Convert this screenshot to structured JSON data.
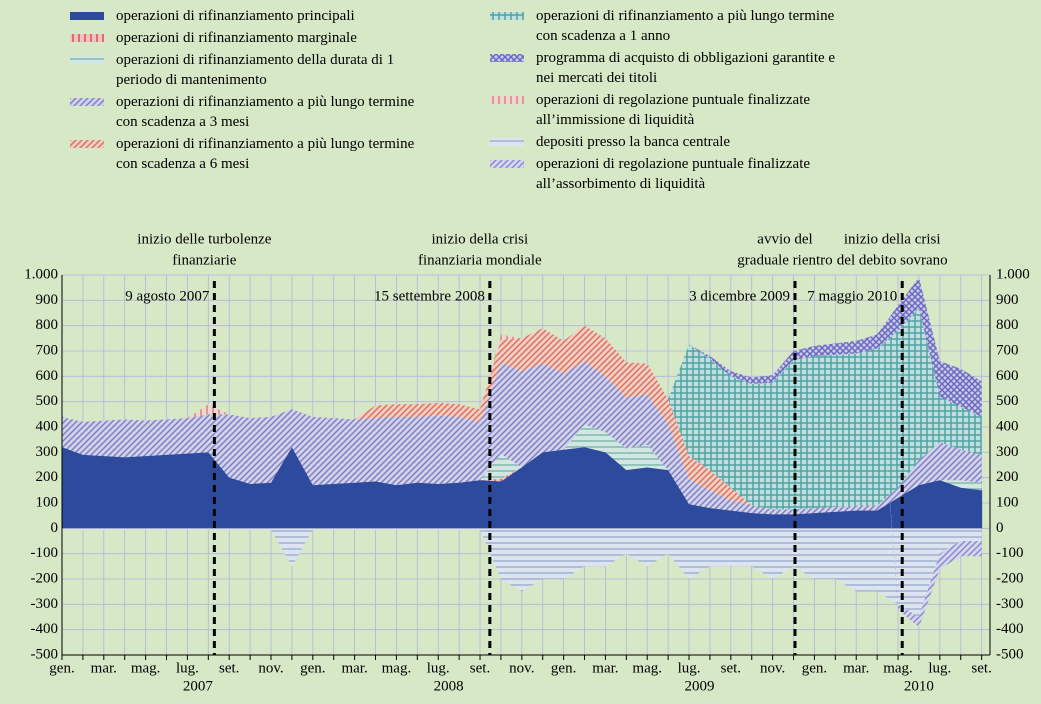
{
  "chart_data": {
    "type": "stacked_area",
    "categories": [
      "gen.",
      null,
      "mar.",
      null,
      "mag.",
      null,
      "lug.",
      null,
      "set.",
      null,
      "nov.",
      null,
      "gen.",
      null,
      "mar.",
      null,
      "mag.",
      null,
      "lug.",
      null,
      "set.",
      null,
      "nov.",
      null,
      "gen.",
      null,
      "mar.",
      null,
      "mag.",
      null,
      "lug.",
      null,
      "set.",
      null,
      "nov.",
      null,
      "gen.",
      null,
      "mar.",
      null,
      "mag.",
      null,
      "lug.",
      null,
      "set."
    ],
    "years": [
      "2007",
      "2008",
      "2009",
      "2010"
    ],
    "ylim": [
      -500,
      1000
    ],
    "yticks": [
      -500,
      -400,
      -300,
      -200,
      -100,
      0,
      100,
      200,
      300,
      400,
      500,
      600,
      700,
      800,
      900,
      {
        "value": 1000,
        "label": "1.000"
      }
    ],
    "grid": true,
    "series": [
      {
        "name": "operazioni di rifinanziamento principali",
        "color": "#2d4a9c",
        "pattern": "solid",
        "values": [
          320,
          290,
          285,
          280,
          285,
          290,
          295,
          300,
          200,
          175,
          180,
          320,
          170,
          175,
          180,
          185,
          170,
          180,
          175,
          180,
          190,
          185,
          240,
          300,
          310,
          320,
          300,
          230,
          240,
          230,
          95,
          80,
          70,
          60,
          55,
          55,
          60,
          65,
          70,
          70,
          120,
          170,
          190,
          160,
          150
        ]
      },
      {
        "name": "operazioni di rifinanziamento marginale",
        "color": "#d9534f",
        "pattern": "vstripes",
        "values": [
          0,
          0,
          0,
          0,
          0,
          0,
          0,
          0,
          0,
          0,
          0,
          0,
          0,
          0,
          0,
          0,
          0,
          0,
          0,
          0,
          0,
          10,
          0,
          0,
          0,
          0,
          0,
          0,
          0,
          0,
          0,
          0,
          0,
          0,
          0,
          0,
          0,
          0,
          0,
          0,
          0,
          0,
          0,
          0,
          0
        ]
      },
      {
        "name": "operazioni di rifinanziamento della durata di 1 periodo di mantenimento",
        "color": "#7fb8ac",
        "pattern": "hstripes",
        "values": [
          0,
          0,
          0,
          0,
          0,
          0,
          0,
          0,
          0,
          0,
          0,
          0,
          0,
          0,
          0,
          0,
          0,
          0,
          0,
          0,
          0,
          100,
          0,
          0,
          0,
          90,
          80,
          85,
          90,
          0,
          0,
          0,
          0,
          0,
          0,
          0,
          0,
          0,
          0,
          0,
          0,
          0,
          0,
          30,
          30
        ]
      },
      {
        "name": "operazioni di rifinanziamento a più lungo termine con scadenza a 3 mesi",
        "color": "#7f7fc6",
        "pattern": "diag",
        "values": [
          120,
          130,
          140,
          150,
          140,
          140,
          140,
          150,
          250,
          260,
          260,
          150,
          270,
          260,
          250,
          250,
          270,
          260,
          270,
          260,
          230,
          360,
          380,
          350,
          300,
          250,
          220,
          200,
          200,
          180,
          100,
          70,
          40,
          30,
          20,
          20,
          20,
          20,
          20,
          20,
          40,
          100,
          150,
          120,
          110
        ]
      },
      {
        "name": "operazioni di rifinanziamento a più lungo termine con scadenza a 6 mesi",
        "color": "#d9735a",
        "pattern": "diag",
        "values": [
          0,
          0,
          0,
          0,
          0,
          0,
          0,
          0,
          0,
          0,
          0,
          0,
          0,
          0,
          0,
          50,
          50,
          50,
          50,
          50,
          50,
          90,
          130,
          140,
          130,
          140,
          150,
          140,
          120,
          100,
          90,
          80,
          50,
          0,
          0,
          0,
          0,
          0,
          0,
          0,
          0,
          0,
          0,
          0,
          0
        ]
      },
      {
        "name": "operazioni di rifinanziamento a più lungo termine con scadenza a 1 anno",
        "color": "#4fa3a3",
        "pattern": "grid",
        "values": [
          0,
          0,
          0,
          0,
          0,
          0,
          0,
          0,
          0,
          0,
          0,
          0,
          0,
          0,
          0,
          0,
          0,
          0,
          0,
          0,
          0,
          0,
          0,
          0,
          0,
          0,
          0,
          0,
          0,
          0,
          440,
          440,
          440,
          480,
          500,
          590,
          600,
          600,
          600,
          620,
          620,
          600,
          180,
          170,
          150
        ]
      },
      {
        "name": "programma di acquisto di obbligazioni garantite e nei mercati dei titoli",
        "color": "#6a6ac0",
        "pattern": "cross",
        "values": [
          0,
          0,
          0,
          0,
          0,
          0,
          0,
          0,
          0,
          0,
          0,
          0,
          0,
          0,
          0,
          0,
          0,
          0,
          0,
          0,
          0,
          0,
          0,
          0,
          0,
          0,
          0,
          0,
          0,
          0,
          0,
          10,
          20,
          25,
          30,
          35,
          40,
          45,
          50,
          55,
          100,
          120,
          140,
          150,
          140
        ]
      },
      {
        "name": "operazioni di regolazione puntuale finalizzate all’immissione di liquidità",
        "color": "#d08a7a",
        "pattern": "vstripes",
        "values": [
          0,
          0,
          0,
          0,
          0,
          0,
          0,
          40,
          0,
          0,
          0,
          0,
          0,
          0,
          0,
          0,
          0,
          0,
          0,
          0,
          0,
          20,
          0,
          0,
          0,
          0,
          0,
          0,
          0,
          0,
          0,
          0,
          0,
          0,
          0,
          0,
          0,
          0,
          0,
          0,
          0,
          0,
          0,
          0,
          0
        ]
      },
      {
        "name": "depositi presso la banca centrale",
        "color": "#9fb0d0",
        "pattern": "hstripes",
        "values": [
          -5,
          -5,
          -5,
          -5,
          -5,
          -5,
          -5,
          -5,
          -5,
          -5,
          -5,
          -150,
          -5,
          -5,
          -5,
          -5,
          -5,
          -5,
          -5,
          -5,
          -5,
          -200,
          -250,
          -200,
          -200,
          -150,
          -150,
          -100,
          -150,
          -100,
          -200,
          -150,
          -150,
          -150,
          -200,
          -150,
          -200,
          -200,
          -250,
          -250,
          -300,
          -350,
          -100,
          -50,
          -50
        ]
      },
      {
        "name": "operazioni di regolazione puntuale finalizzate all’assorbimento di liquidità",
        "color": "#8a8ad0",
        "pattern": "diag",
        "values": [
          0,
          0,
          0,
          0,
          0,
          0,
          0,
          0,
          0,
          0,
          0,
          0,
          0,
          0,
          0,
          0,
          0,
          0,
          0,
          0,
          0,
          0,
          0,
          0,
          0,
          0,
          0,
          0,
          0,
          0,
          0,
          0,
          0,
          0,
          0,
          0,
          0,
          0,
          0,
          0,
          -20,
          -40,
          -60,
          -60,
          -60
        ]
      }
    ],
    "annotations": [
      {
        "x": 7.29,
        "date": "9 agosto 2007",
        "event": [
          "inizio delle turbolenze",
          "finanziarie"
        ]
      },
      {
        "x": 20.47,
        "date": "15 settembre 2008",
        "event": [
          "inizio della crisi",
          "finanziaria mondiale"
        ]
      },
      {
        "x": 35.07,
        "date": "3 dicembre 2009",
        "event": [
          "avvio del",
          "graduale rientro"
        ]
      },
      {
        "x": 40.2,
        "date": "7 maggio 2010",
        "event": [
          "inizio della crisi",
          "del debito sovrano"
        ]
      }
    ]
  }
}
